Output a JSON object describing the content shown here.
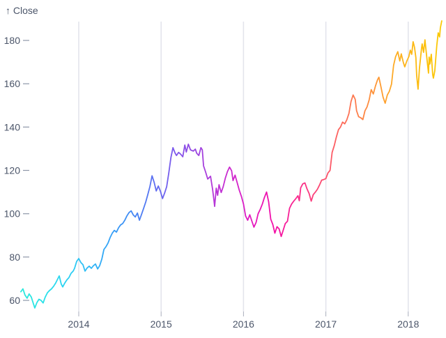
{
  "header": {
    "y_axis_label": "↑ Close"
  },
  "colors": {
    "background": "#ffffff",
    "text": "#4b5569",
    "grid": "#e3e4ec",
    "x_tick": "#a9aebc",
    "y_tick": "#8d96a8",
    "line_gradient": [
      {
        "offset": 0.0,
        "color": "#2BE9DB"
      },
      {
        "offset": 0.06,
        "color": "#2BE0EA"
      },
      {
        "offset": 0.12,
        "color": "#2CCDF3"
      },
      {
        "offset": 0.18,
        "color": "#30B0F6"
      },
      {
        "offset": 0.24,
        "color": "#3A94F5"
      },
      {
        "offset": 0.3,
        "color": "#5377F2"
      },
      {
        "offset": 0.36,
        "color": "#7A59EC"
      },
      {
        "offset": 0.42,
        "color": "#9C45E0"
      },
      {
        "offset": 0.48,
        "color": "#C32FD3"
      },
      {
        "offset": 0.54,
        "color": "#E01AC3"
      },
      {
        "offset": 0.6,
        "color": "#F30FA8"
      },
      {
        "offset": 0.66,
        "color": "#FA2B8C"
      },
      {
        "offset": 0.72,
        "color": "#FC4F6E"
      },
      {
        "offset": 0.78,
        "color": "#FD7455"
      },
      {
        "offset": 0.84,
        "color": "#FE9438"
      },
      {
        "offset": 0.9,
        "color": "#FDB11F"
      },
      {
        "offset": 0.95,
        "color": "#FCBD0E"
      },
      {
        "offset": 1.0,
        "color": "#FBC903"
      }
    ]
  },
  "chart_data": {
    "type": "line",
    "title": "",
    "xlabel": "",
    "ylabel": "Close",
    "legend_position": "none",
    "grid": "vertical year gridlines",
    "x_ticks": [
      2014,
      2015,
      2016,
      2017,
      2018
    ],
    "y_ticks": [
      60,
      80,
      100,
      120,
      140,
      160,
      180
    ],
    "x_range": [
      2013.29,
      2018.41
    ],
    "y_range": [
      55,
      190
    ],
    "series": [
      {
        "name": "Close",
        "points": [
          [
            2013.297,
            64
          ],
          [
            2013.322,
            65.3
          ],
          [
            2013.347,
            62.5
          ],
          [
            2013.373,
            61
          ],
          [
            2013.398,
            63
          ],
          [
            2013.424,
            61.5
          ],
          [
            2013.449,
            58.5
          ],
          [
            2013.466,
            56.5
          ],
          [
            2013.492,
            59
          ],
          [
            2013.517,
            60.5
          ],
          [
            2013.542,
            60
          ],
          [
            2013.568,
            58.8
          ],
          [
            2013.593,
            61.5
          ],
          [
            2013.619,
            63.5
          ],
          [
            2013.644,
            64.5
          ],
          [
            2013.669,
            65.3
          ],
          [
            2013.695,
            66.5
          ],
          [
            2013.72,
            68
          ],
          [
            2013.746,
            70
          ],
          [
            2013.763,
            71.3
          ],
          [
            2013.788,
            67.5
          ],
          [
            2013.805,
            66.2
          ],
          [
            2013.831,
            68
          ],
          [
            2013.856,
            69.5
          ],
          [
            2013.881,
            70.5
          ],
          [
            2013.907,
            72.5
          ],
          [
            2013.932,
            73.5
          ],
          [
            2013.949,
            74.8
          ],
          [
            2013.975,
            78
          ],
          [
            2014.0,
            79.3
          ],
          [
            2014.025,
            77.5
          ],
          [
            2014.051,
            76.5
          ],
          [
            2014.076,
            73.5
          ],
          [
            2014.102,
            75
          ],
          [
            2014.127,
            75.8
          ],
          [
            2014.153,
            74.8
          ],
          [
            2014.178,
            76
          ],
          [
            2014.203,
            76.8
          ],
          [
            2014.229,
            74.5
          ],
          [
            2014.254,
            76
          ],
          [
            2014.28,
            79
          ],
          [
            2014.305,
            83.5
          ],
          [
            2014.331,
            84.8
          ],
          [
            2014.356,
            86.5
          ],
          [
            2014.381,
            89
          ],
          [
            2014.407,
            91
          ],
          [
            2014.432,
            92.3
          ],
          [
            2014.458,
            91.5
          ],
          [
            2014.483,
            93.5
          ],
          [
            2014.508,
            94.8
          ],
          [
            2014.534,
            95.5
          ],
          [
            2014.559,
            97
          ],
          [
            2014.585,
            99
          ],
          [
            2014.61,
            100.5
          ],
          [
            2014.636,
            101.3
          ],
          [
            2014.661,
            99.5
          ],
          [
            2014.686,
            98.5
          ],
          [
            2014.712,
            100.3
          ],
          [
            2014.737,
            97
          ],
          [
            2014.763,
            99.8
          ],
          [
            2014.788,
            102.5
          ],
          [
            2014.814,
            105.5
          ],
          [
            2014.839,
            109
          ],
          [
            2014.864,
            112.5
          ],
          [
            2014.89,
            117.5
          ],
          [
            2014.915,
            114.5
          ],
          [
            2014.941,
            110.5
          ],
          [
            2014.966,
            112.8
          ],
          [
            2014.992,
            110.3
          ],
          [
            2015.017,
            107
          ],
          [
            2015.042,
            109.5
          ],
          [
            2015.068,
            112.5
          ],
          [
            2015.093,
            118.8
          ],
          [
            2015.119,
            126
          ],
          [
            2015.144,
            130.5
          ],
          [
            2015.169,
            128
          ],
          [
            2015.186,
            126.9
          ],
          [
            2015.212,
            128.3
          ],
          [
            2015.237,
            127.5
          ],
          [
            2015.263,
            126.3
          ],
          [
            2015.288,
            131.7
          ],
          [
            2015.305,
            128.5
          ],
          [
            2015.331,
            132.1
          ],
          [
            2015.356,
            129.5
          ],
          [
            2015.39,
            128.9
          ],
          [
            2015.415,
            129.8
          ],
          [
            2015.432,
            127.9
          ],
          [
            2015.458,
            126.9
          ],
          [
            2015.483,
            130.5
          ],
          [
            2015.5,
            129.5
          ],
          [
            2015.515,
            122.1
          ],
          [
            2015.541,
            119.2
          ],
          [
            2015.566,
            116
          ],
          [
            2015.6,
            117.3
          ],
          [
            2015.625,
            111.2
          ],
          [
            2015.642,
            106
          ],
          [
            2015.65,
            103.4
          ],
          [
            2015.669,
            111.8
          ],
          [
            2015.686,
            108.5
          ],
          [
            2015.703,
            113.4
          ],
          [
            2015.729,
            109.8
          ],
          [
            2015.754,
            112.5
          ],
          [
            2015.78,
            116.5
          ],
          [
            2015.805,
            119.5
          ],
          [
            2015.831,
            121.5
          ],
          [
            2015.856,
            119.8
          ],
          [
            2015.873,
            115.3
          ],
          [
            2015.898,
            117.8
          ],
          [
            2015.924,
            114.3
          ],
          [
            2015.949,
            110.8
          ],
          [
            2015.975,
            108
          ],
          [
            2016.0,
            104.5
          ],
          [
            2016.025,
            99
          ],
          [
            2016.051,
            97
          ],
          [
            2016.076,
            99.5
          ],
          [
            2016.102,
            96.5
          ],
          [
            2016.127,
            93.8
          ],
          [
            2016.153,
            96
          ],
          [
            2016.178,
            100
          ],
          [
            2016.203,
            102
          ],
          [
            2016.229,
            104.5
          ],
          [
            2016.254,
            107.5
          ],
          [
            2016.28,
            110
          ],
          [
            2016.305,
            105.5
          ],
          [
            2016.331,
            97.5
          ],
          [
            2016.356,
            95
          ],
          [
            2016.381,
            91
          ],
          [
            2016.407,
            94
          ],
          [
            2016.432,
            93
          ],
          [
            2016.458,
            89.5
          ],
          [
            2016.483,
            92.5
          ],
          [
            2016.508,
            95.5
          ],
          [
            2016.534,
            96.5
          ],
          [
            2016.559,
            102.5
          ],
          [
            2016.585,
            104.5
          ],
          [
            2016.61,
            105.8
          ],
          [
            2016.636,
            107
          ],
          [
            2016.661,
            108.3
          ],
          [
            2016.678,
            106
          ],
          [
            2016.695,
            112
          ],
          [
            2016.72,
            113.8
          ],
          [
            2016.746,
            114.2
          ],
          [
            2016.771,
            111.5
          ],
          [
            2016.797,
            109.3
          ],
          [
            2016.822,
            105.8
          ],
          [
            2016.847,
            108.8
          ],
          [
            2016.873,
            110
          ],
          [
            2016.898,
            111.3
          ],
          [
            2016.924,
            113.3
          ],
          [
            2016.949,
            115.5
          ],
          [
            2016.975,
            115.8
          ],
          [
            2017.0,
            116.2
          ],
          [
            2017.025,
            118.8
          ],
          [
            2017.051,
            120
          ],
          [
            2017.076,
            128.3
          ],
          [
            2017.102,
            131.5
          ],
          [
            2017.127,
            135.3
          ],
          [
            2017.153,
            138.8
          ],
          [
            2017.178,
            140
          ],
          [
            2017.203,
            142.3
          ],
          [
            2017.229,
            141.5
          ],
          [
            2017.254,
            143.3
          ],
          [
            2017.28,
            146.3
          ],
          [
            2017.305,
            151.8
          ],
          [
            2017.331,
            154.8
          ],
          [
            2017.356,
            152.8
          ],
          [
            2017.373,
            147.5
          ],
          [
            2017.398,
            144.8
          ],
          [
            2017.424,
            144.3
          ],
          [
            2017.449,
            143.5
          ],
          [
            2017.475,
            147.5
          ],
          [
            2017.5,
            149.3
          ],
          [
            2017.525,
            152.5
          ],
          [
            2017.551,
            157.3
          ],
          [
            2017.576,
            155.3
          ],
          [
            2017.602,
            159
          ],
          [
            2017.627,
            161.8
          ],
          [
            2017.644,
            163
          ],
          [
            2017.669,
            158.5
          ],
          [
            2017.695,
            153.8
          ],
          [
            2017.72,
            151
          ],
          [
            2017.746,
            154.8
          ],
          [
            2017.771,
            156.5
          ],
          [
            2017.797,
            159.8
          ],
          [
            2017.822,
            168.5
          ],
          [
            2017.847,
            172.5
          ],
          [
            2017.873,
            174.8
          ],
          [
            2017.898,
            170.5
          ],
          [
            2017.915,
            173.8
          ],
          [
            2017.941,
            169.8
          ],
          [
            2017.958,
            167.8
          ],
          [
            2017.983,
            170.5
          ],
          [
            2018.008,
            172.5
          ],
          [
            2018.025,
            175.5
          ],
          [
            2018.042,
            173.6
          ],
          [
            2018.059,
            179.4
          ],
          [
            2018.076,
            176.8
          ],
          [
            2018.093,
            172
          ],
          [
            2018.102,
            163.9
          ],
          [
            2018.119,
            157.5
          ],
          [
            2018.136,
            167.1
          ],
          [
            2018.161,
            176.1
          ],
          [
            2018.169,
            178.4
          ],
          [
            2018.186,
            174.5
          ],
          [
            2018.203,
            180.3
          ],
          [
            2018.212,
            176.8
          ],
          [
            2018.229,
            170.7
          ],
          [
            2018.246,
            164.9
          ],
          [
            2018.254,
            172.3
          ],
          [
            2018.263,
            169.1
          ],
          [
            2018.28,
            173.6
          ],
          [
            2018.297,
            164.3
          ],
          [
            2018.305,
            162.6
          ],
          [
            2018.322,
            165.9
          ],
          [
            2018.347,
            177.7
          ],
          [
            2018.364,
            183.5
          ],
          [
            2018.381,
            181.6
          ],
          [
            2018.39,
            185.8
          ],
          [
            2018.407,
            189
          ]
        ]
      }
    ]
  }
}
